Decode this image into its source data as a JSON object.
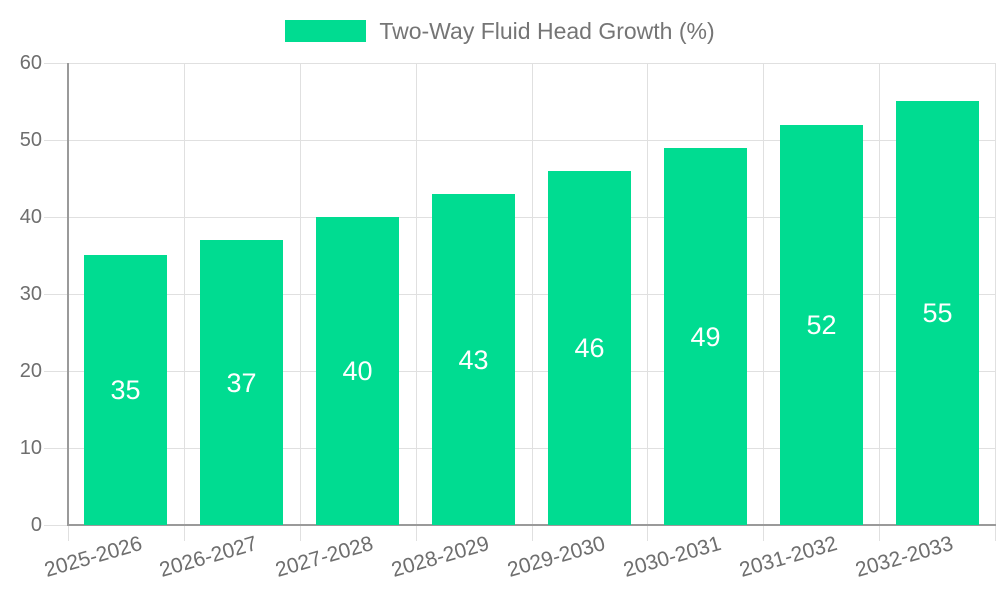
{
  "legend": {
    "label": "Two-Way Fluid Head Growth (%)"
  },
  "colors": {
    "bar": "#00DC91",
    "grid": "#E0E0E0",
    "axis": "#9A9A9A",
    "axis_label": "#6E6E6E",
    "legend_text": "#757575",
    "value_label": "#FFFFFF",
    "background": "#FFFFFF"
  },
  "chart_data": {
    "type": "bar",
    "title": "Two-Way Fluid Head Growth (%)",
    "categories": [
      "2025-2026",
      "2026-2027",
      "2027-2028",
      "2028-2029",
      "2029-2030",
      "2030-2031",
      "2031-2032",
      "2032-2033"
    ],
    "values": [
      35,
      37,
      40,
      43,
      46,
      49,
      52,
      55
    ],
    "series": [
      {
        "name": "Two-Way Fluid Head Growth (%)",
        "values": [
          35,
          37,
          40,
          43,
          46,
          49,
          52,
          55
        ]
      }
    ],
    "xlabel": "",
    "ylabel": "",
    "ylim": [
      0,
      60
    ],
    "ytick_step": 10,
    "yticks": [
      0,
      10,
      20,
      30,
      40,
      50,
      60
    ],
    "grid": true,
    "legend_position": "top-center",
    "bar_label_position": "inside-center",
    "x_label_rotation_deg": -16
  }
}
